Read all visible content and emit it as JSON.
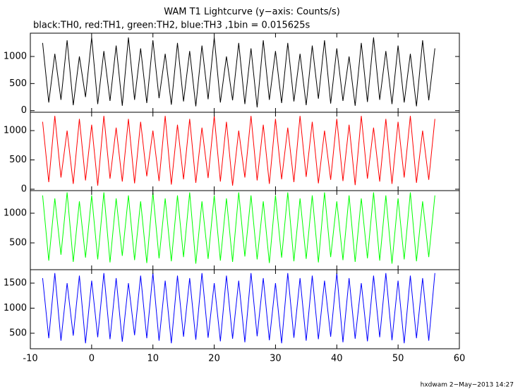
{
  "chart_data": [
    {
      "type": "line",
      "title": "WAM T1 Lightcurve (y−axis: Counts/s)",
      "subtitle": "black:TH0, red:TH1, green:TH2, blue:TH3 ,1bin = 0.015625s",
      "color": "#000000",
      "ylim": [
        -30,
        1430
      ],
      "yticks": [
        0,
        500,
        1000
      ],
      "x": [
        -8,
        -7,
        -6,
        -5,
        -4,
        -3,
        -2,
        -1,
        0,
        1,
        2,
        3,
        4,
        5,
        6,
        7,
        8,
        9,
        10,
        11,
        12,
        13,
        14,
        15,
        16,
        17,
        18,
        19,
        20,
        21,
        22,
        23,
        24,
        25,
        26,
        27,
        28,
        29,
        30,
        31,
        32,
        33,
        34,
        35,
        36,
        37,
        38,
        39,
        40,
        41,
        42,
        43,
        44,
        45,
        46,
        47,
        48,
        49,
        50,
        51,
        52,
        53,
        54,
        55,
        56
      ],
      "values": [
        1250,
        150,
        1050,
        200,
        1300,
        100,
        1000,
        250,
        1350,
        120,
        1100,
        180,
        1200,
        90,
        1350,
        200,
        1150,
        140,
        1300,
        230,
        1050,
        110,
        1250,
        170,
        1100,
        80,
        1200,
        210,
        1350,
        150,
        1000,
        190,
        1250,
        120,
        1150,
        60,
        1300,
        200,
        1100,
        140,
        1250,
        170,
        1050,
        100,
        1200,
        220,
        1300,
        130,
        1150,
        180,
        1000,
        90,
        1250,
        160,
        1350,
        200,
        1100,
        120,
        1200,
        150,
        1050,
        80,
        1300,
        190,
        1150
      ]
    },
    {
      "type": "line",
      "color": "#ff0000",
      "ylim": [
        -24,
        1313
      ],
      "yticks": [
        0,
        500,
        1000
      ],
      "x": [
        -8,
        -7,
        -6,
        -5,
        -4,
        -3,
        -2,
        -1,
        0,
        1,
        2,
        3,
        4,
        5,
        6,
        7,
        8,
        9,
        10,
        11,
        12,
        13,
        14,
        15,
        16,
        17,
        18,
        19,
        20,
        21,
        22,
        23,
        24,
        25,
        26,
        27,
        28,
        29,
        30,
        31,
        32,
        33,
        34,
        35,
        36,
        37,
        38,
        39,
        40,
        41,
        42,
        43,
        44,
        45,
        46,
        47,
        48,
        49,
        50,
        51,
        52,
        53,
        54,
        55,
        56
      ],
      "values": [
        1150,
        120,
        1250,
        200,
        1000,
        90,
        1200,
        150,
        1100,
        60,
        1250,
        180,
        1050,
        130,
        1200,
        100,
        1150,
        220,
        1000,
        140,
        1250,
        80,
        1100,
        170,
        1200,
        110,
        1050,
        190,
        1250,
        130,
        1150,
        60,
        1000,
        200,
        1250,
        150,
        1100,
        90,
        1200,
        170,
        1050,
        120,
        1250,
        210,
        1150,
        100,
        1000,
        160,
        1200,
        140,
        1100,
        70,
        1250,
        180,
        1050,
        130,
        1200,
        90,
        1150,
        200,
        1250,
        110,
        1000,
        160,
        1200
      ]
    },
    {
      "type": "line",
      "color": "#00ff00",
      "ylim": [
        48,
        1381
      ],
      "yticks": [
        500,
        1000
      ],
      "x": [
        -8,
        -7,
        -6,
        -5,
        -4,
        -3,
        -2,
        -1,
        0,
        1,
        2,
        3,
        4,
        5,
        6,
        7,
        8,
        9,
        10,
        11,
        12,
        13,
        14,
        15,
        16,
        17,
        18,
        19,
        20,
        21,
        22,
        23,
        24,
        25,
        26,
        27,
        28,
        29,
        30,
        31,
        32,
        33,
        34,
        35,
        36,
        37,
        38,
        39,
        40,
        41,
        42,
        43,
        44,
        45,
        46,
        47,
        48,
        49,
        50,
        51,
        52,
        53,
        54,
        55,
        56
      ],
      "values": [
        1300,
        200,
        1250,
        300,
        1350,
        180,
        1200,
        250,
        1300,
        220,
        1350,
        170,
        1250,
        280,
        1300,
        210,
        1200,
        160,
        1350,
        240,
        1250,
        190,
        1300,
        260,
        1350,
        150,
        1200,
        230,
        1300,
        200,
        1250,
        180,
        1350,
        270,
        1300,
        220,
        1200,
        160,
        1300,
        250,
        1350,
        190,
        1250,
        230,
        1300,
        170,
        1350,
        260,
        1200,
        210,
        1300,
        180,
        1250,
        240,
        1350,
        200,
        1300,
        150,
        1250,
        220,
        1350,
        190,
        1200,
        260,
        1300
      ]
    },
    {
      "type": "line",
      "color": "#0000ff",
      "ylim": [
        190,
        1768
      ],
      "yticks": [
        500,
        1000,
        1500
      ],
      "xlim": [
        -10,
        60
      ],
      "xticks": [
        -10,
        0,
        10,
        20,
        30,
        40,
        50,
        60
      ],
      "x": [
        -8,
        -7,
        -6,
        -5,
        -4,
        -3,
        -2,
        -1,
        0,
        1,
        2,
        3,
        4,
        5,
        6,
        7,
        8,
        9,
        10,
        11,
        12,
        13,
        14,
        15,
        16,
        17,
        18,
        19,
        20,
        21,
        22,
        23,
        24,
        25,
        26,
        27,
        28,
        29,
        30,
        31,
        32,
        33,
        34,
        35,
        36,
        37,
        38,
        39,
        40,
        41,
        42,
        43,
        44,
        45,
        46,
        47,
        48,
        49,
        50,
        51,
        52,
        53,
        54,
        55,
        56
      ],
      "values": [
        1600,
        400,
        1700,
        350,
        1500,
        450,
        1650,
        300,
        1550,
        420,
        1700,
        380,
        1600,
        330,
        1500,
        460,
        1650,
        400,
        1700,
        350,
        1550,
        300,
        1650,
        430,
        1600,
        370,
        1700,
        410,
        1500,
        340,
        1650,
        390,
        1550,
        320,
        1700,
        440,
        1600,
        360,
        1500,
        300,
        1700,
        410,
        1600,
        350,
        1650,
        380,
        1550,
        430,
        1700,
        320,
        1600,
        390,
        1500,
        340,
        1650,
        420,
        1700,
        360,
        1550,
        300,
        1650,
        400,
        1600,
        350,
        1700
      ]
    }
  ],
  "footer": "hxdwam  2−May−2013 14:27"
}
